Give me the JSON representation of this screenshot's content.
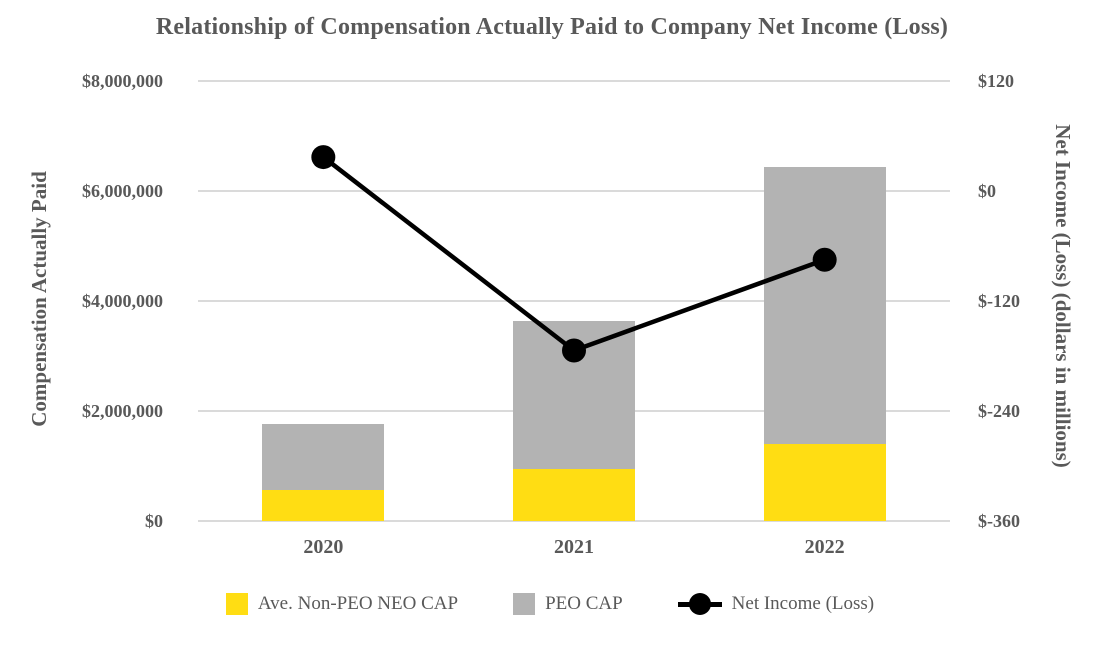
{
  "title": "Relationship of Compensation Actually Paid to Company Net Income (Loss)",
  "chart_data": {
    "type": "bar",
    "subtype": "stacked-bars-with-line-overlay",
    "categories": [
      "2020",
      "2021",
      "2022"
    ],
    "series": [
      {
        "name": "Ave. Non-PEO NEO CAP",
        "kind": "bar",
        "color": "#FFDD13",
        "values": [
          570000,
          950000,
          1400000
        ]
      },
      {
        "name": "PEO CAP",
        "kind": "bar",
        "color": "#B3B3B3",
        "values": [
          1200000,
          2680000,
          5030000
        ]
      },
      {
        "name": "Net Income (Loss)",
        "kind": "line",
        "color": "#000000",
        "values": [
          37,
          -174,
          -75
        ]
      }
    ],
    "stacked_totals": [
      1770000,
      3630000,
      6430000
    ],
    "left_axis": {
      "label": "Compensation Actually Paid",
      "min": 0,
      "max": 8000000,
      "tick_labels_top_to_bottom": [
        "$8,000,000",
        "$6,000,000",
        "$4,000,000",
        "$2,000,000",
        "$0"
      ]
    },
    "right_axis": {
      "label": "Net Income (Loss) (dollars in millions)",
      "min": -360,
      "max": 120,
      "tick_labels_top_to_bottom": [
        "$120",
        "$0",
        "$-120",
        "$-240",
        "$-360"
      ]
    },
    "grid": true,
    "legend_position": "bottom",
    "legend": [
      {
        "marker": "square",
        "color": "#FFDD13",
        "label": "Ave. Non-PEO NEO CAP"
      },
      {
        "marker": "square",
        "color": "#B3B3B3",
        "label": "PEO CAP"
      },
      {
        "marker": "line-dot",
        "color": "#000000",
        "label": "Net Income (Loss)"
      }
    ],
    "style": {
      "gridline_color": "#DADADA",
      "text_color": "#595959",
      "line_color": "#000000",
      "background": "#FFFFFF"
    }
  }
}
